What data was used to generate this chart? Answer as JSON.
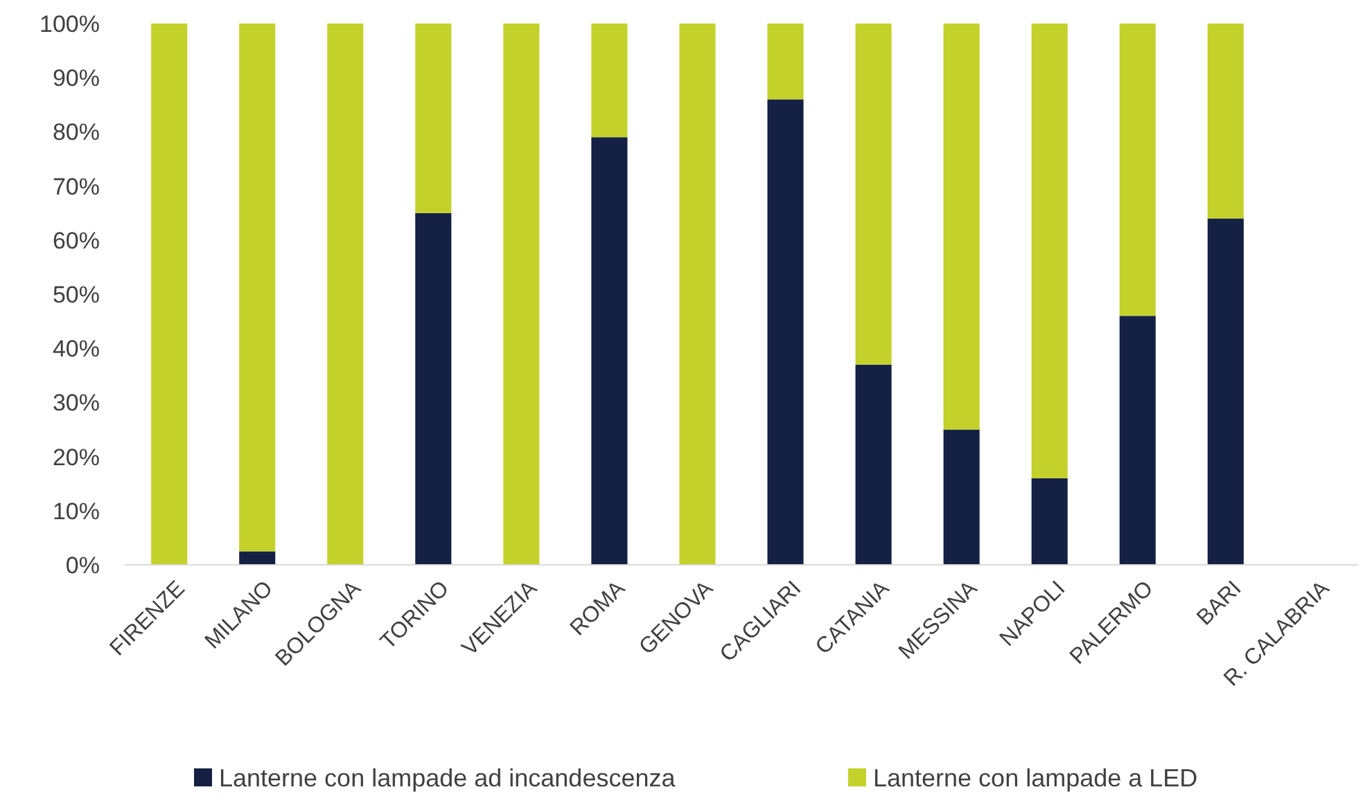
{
  "chart_data": {
    "type": "bar",
    "stacked": true,
    "categories": [
      "FIRENZE",
      "MILANO",
      "BOLOGNA",
      "TORINO",
      "VENEZIA",
      "ROMA",
      "GENOVA",
      "CAGLIARI",
      "CATANIA",
      "MESSINA",
      "NAPOLI",
      "PALERMO",
      "BARI",
      "R. CALABRIA"
    ],
    "series": [
      {
        "name": "Lanterne con lampade ad incandescenza",
        "color": "#142144",
        "values": [
          0,
          2.5,
          0,
          65,
          0,
          79,
          0,
          86,
          37,
          25,
          16,
          46,
          64,
          0
        ]
      },
      {
        "name": "Lanterne con lampade a LED",
        "color": "#c4d12b",
        "values": [
          100,
          97.5,
          100,
          35,
          100,
          21,
          100,
          14,
          63,
          75,
          84,
          54,
          36,
          0
        ]
      }
    ],
    "ylim": [
      0,
      100
    ],
    "yticks": [
      {
        "value": 0,
        "label": "0%"
      },
      {
        "value": 10,
        "label": "10%"
      },
      {
        "value": 20,
        "label": "20%"
      },
      {
        "value": 30,
        "label": "30%"
      },
      {
        "value": 40,
        "label": "40%"
      },
      {
        "value": 50,
        "label": "50%"
      },
      {
        "value": 60,
        "label": "60%"
      },
      {
        "value": 70,
        "label": "70%"
      },
      {
        "value": 80,
        "label": "80%"
      },
      {
        "value": 90,
        "label": "90%"
      },
      {
        "value": 100,
        "label": "100%"
      }
    ],
    "grid": false,
    "legend": "bottom"
  }
}
